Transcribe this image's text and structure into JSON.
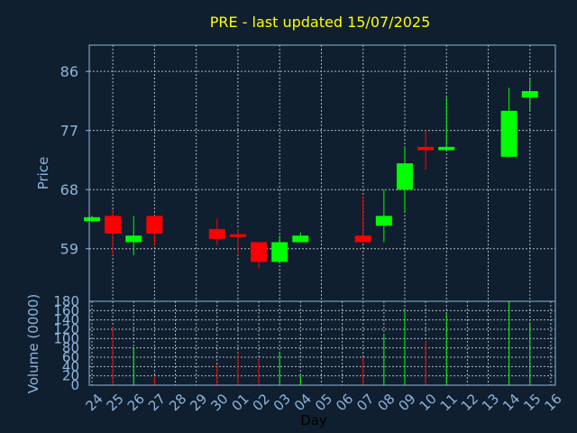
{
  "chart_data": {
    "type": "candlestick",
    "title": "PRE - last updated 15/07/2025",
    "ylabel": "Price",
    "volume_label": "Volume (0000)",
    "xlabel": "Day",
    "colors": {
      "up": "#00ff00",
      "down": "#ff0000",
      "title": "#ffff00",
      "axis": "#8fb5dc",
      "background": "#0f1f2f"
    },
    "price_ylim": [
      51,
      90
    ],
    "price_ticks": [
      59,
      68,
      77,
      86
    ],
    "volume_ylim": [
      0,
      180
    ],
    "volume_ticks": [
      0,
      20,
      40,
      60,
      80,
      100,
      120,
      140,
      160,
      180
    ],
    "x_tick_labels": [
      "24",
      "25",
      "26",
      "27",
      "28",
      "29",
      "30",
      "01",
      "02",
      "03",
      "04",
      "05",
      "06",
      "07",
      "08",
      "09",
      "10",
      "11",
      "12",
      "13",
      "14",
      "15",
      "16"
    ],
    "grid": true,
    "candles": [
      {
        "day": "24",
        "open": 63.2,
        "close": 63.8,
        "high": 64.0,
        "low": 63.0,
        "volume": 0
      },
      {
        "day": "25",
        "open": 64.0,
        "close": 61.3,
        "high": 65.0,
        "low": 58.0,
        "volume": 125
      },
      {
        "day": "26",
        "open": 60.0,
        "close": 61.0,
        "high": 64.0,
        "low": 58.0,
        "volume": 80
      },
      {
        "day": "27",
        "open": 64.0,
        "close": 61.3,
        "high": 64.0,
        "low": 59.5,
        "volume": 18
      },
      {
        "day": "30",
        "open": 62.0,
        "close": 60.5,
        "high": 63.6,
        "low": 59.5,
        "volume": 45
      },
      {
        "day": "01",
        "open": 61.2,
        "close": 60.8,
        "high": 62.0,
        "low": 58.0,
        "volume": 70
      },
      {
        "day": "02",
        "open": 60.0,
        "close": 57.0,
        "high": 60.0,
        "low": 56.0,
        "volume": 55
      },
      {
        "day": "03",
        "open": 57.0,
        "close": 60.0,
        "high": 61.0,
        "low": 57.0,
        "volume": 72
      },
      {
        "day": "04",
        "open": 60.0,
        "close": 61.0,
        "high": 61.5,
        "low": 60.0,
        "volume": 20
      },
      {
        "day": "07",
        "open": 61.0,
        "close": 60.0,
        "high": 67.0,
        "low": 60.0,
        "volume": 60
      },
      {
        "day": "08",
        "open": 62.5,
        "close": 64.0,
        "high": 68.0,
        "low": 60.0,
        "volume": 110
      },
      {
        "day": "09",
        "open": 68.0,
        "close": 72.0,
        "high": 74.5,
        "low": 64.5,
        "volume": 160
      },
      {
        "day": "10",
        "open": 74.5,
        "close": 74.0,
        "high": 77.0,
        "low": 71.0,
        "volume": 95
      },
      {
        "day": "11",
        "open": 74.0,
        "close": 74.5,
        "high": 82.0,
        "low": 74.0,
        "volume": 155
      },
      {
        "day": "14",
        "open": 73.0,
        "close": 80.0,
        "high": 83.5,
        "low": 73.0,
        "volume": 180
      },
      {
        "day": "15",
        "open": 82.0,
        "close": 83.0,
        "high": 85.0,
        "low": 80.0,
        "volume": 135
      }
    ]
  }
}
